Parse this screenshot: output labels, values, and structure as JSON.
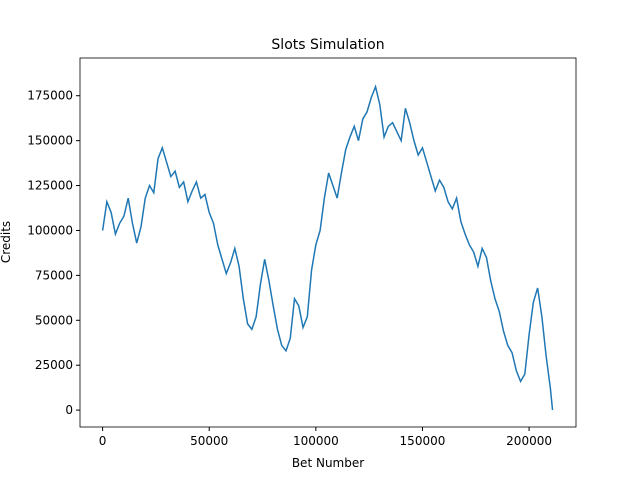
{
  "chart_data": {
    "type": "line",
    "title": "Slots Simulation",
    "x_label": "Bet Number",
    "y_label": "Credits",
    "x": [
      0,
      2000,
      4000,
      6000,
      8000,
      10000,
      12000,
      14000,
      16000,
      18000,
      20000,
      22000,
      24000,
      26000,
      28000,
      30000,
      32000,
      34000,
      36000,
      38000,
      40000,
      42000,
      44000,
      46000,
      48000,
      50000,
      52000,
      54000,
      56000,
      58000,
      60000,
      62000,
      64000,
      66000,
      68000,
      70000,
      72000,
      74000,
      76000,
      78000,
      80000,
      82000,
      84000,
      86000,
      88000,
      90000,
      92000,
      94000,
      96000,
      98000,
      100000,
      102000,
      104000,
      106000,
      108000,
      110000,
      112000,
      114000,
      116000,
      118000,
      120000,
      122000,
      124000,
      126000,
      128000,
      130000,
      132000,
      134000,
      136000,
      138000,
      140000,
      142000,
      144000,
      146000,
      148000,
      150000,
      152000,
      154000,
      156000,
      158000,
      160000,
      162000,
      164000,
      166000,
      168000,
      170000,
      172000,
      174000,
      176000,
      178000,
      180000,
      182000,
      184000,
      186000,
      188000,
      190000,
      192000,
      194000,
      196000,
      198000,
      200000,
      202000,
      204000,
      206000,
      208000,
      210000,
      211000
    ],
    "series": [
      {
        "name": "Credits",
        "color": "#1f77b4",
        "values": [
          100000,
          116000,
          110000,
          98000,
          104000,
          108000,
          118000,
          104000,
          93000,
          102000,
          118000,
          125000,
          121000,
          140000,
          146000,
          138000,
          130000,
          133000,
          124000,
          127000,
          116000,
          122000,
          127000,
          118000,
          120000,
          110000,
          104000,
          92000,
          84000,
          76000,
          82000,
          90000,
          80000,
          62000,
          48000,
          45000,
          52000,
          70000,
          84000,
          72000,
          58000,
          45000,
          36000,
          33000,
          40000,
          62000,
          58000,
          46000,
          52000,
          78000,
          92000,
          100000,
          118000,
          132000,
          125000,
          118000,
          132000,
          145000,
          152000,
          158000,
          150000,
          162000,
          166000,
          174000,
          180000,
          170000,
          152000,
          158000,
          160000,
          155000,
          150000,
          168000,
          160000,
          150000,
          142000,
          146000,
          138000,
          130000,
          122000,
          128000,
          124000,
          116000,
          112000,
          118000,
          105000,
          98000,
          92000,
          88000,
          80000,
          90000,
          85000,
          72000,
          62000,
          55000,
          44000,
          36000,
          32000,
          22000,
          16000,
          20000,
          42000,
          60000,
          68000,
          52000,
          30000,
          12000,
          0
        ]
      }
    ],
    "xlim": [
      -10600,
      222000
    ],
    "ylim": [
      -9400,
      196000
    ],
    "xticks": [
      0,
      50000,
      100000,
      150000,
      200000
    ],
    "yticks": [
      0,
      25000,
      50000,
      75000,
      100000,
      125000,
      150000,
      175000
    ]
  }
}
